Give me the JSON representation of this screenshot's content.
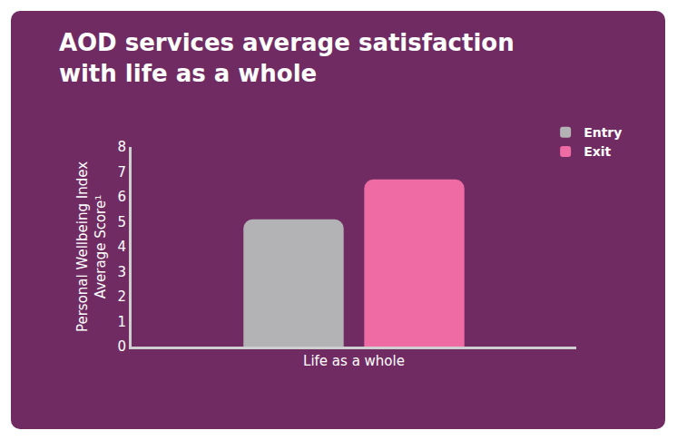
{
  "chart_data": {
    "type": "bar",
    "title": "AOD services average satisfaction with life as a whole",
    "y_label": "Personal Wellbeing Index Average Score¹",
    "categories": [
      "Life as a whole"
    ],
    "series": [
      {
        "name": "Entry",
        "color": "#b3b3b5",
        "values": [
          5.1
        ]
      },
      {
        "name": "Exit",
        "color": "#ee6ba4",
        "values": [
          6.7
        ]
      }
    ],
    "ylim": [
      0,
      8
    ],
    "yticks": [
      0,
      1,
      2,
      3,
      4,
      5,
      6,
      7,
      8
    ],
    "grid": false,
    "legend": "top right"
  }
}
